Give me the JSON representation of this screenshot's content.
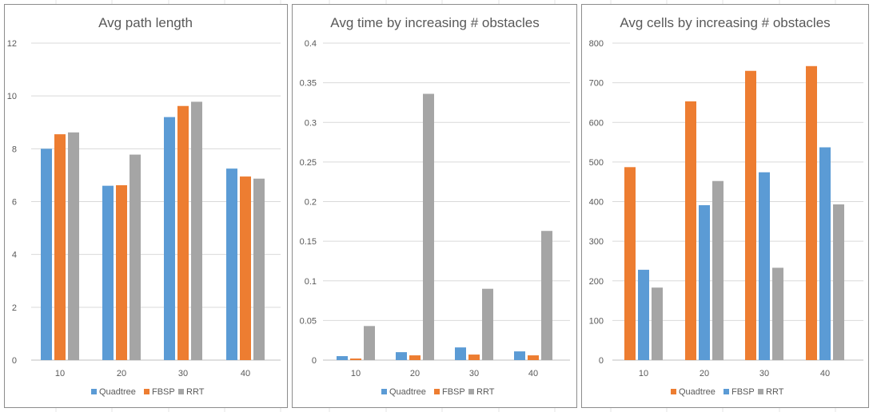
{
  "colors": {
    "Quadtree": "#5b9bd5",
    "FBSP": "#ed7d31",
    "RRT": "#a5a5a5"
  },
  "chart_data": [
    {
      "type": "bar",
      "title": "Avg path length",
      "categories": [
        "10",
        "20",
        "30",
        "40"
      ],
      "series": [
        {
          "name": "Quadtree",
          "values": [
            8.0,
            6.6,
            9.2,
            7.25
          ]
        },
        {
          "name": "FBSP",
          "values": [
            8.55,
            6.62,
            9.62,
            6.95
          ]
        },
        {
          "name": "RRT",
          "values": [
            8.62,
            7.78,
            9.78,
            6.87
          ]
        }
      ],
      "ylim": [
        0,
        12
      ],
      "yticks": [
        "0",
        "2",
        "4",
        "6",
        "8",
        "10",
        "12"
      ],
      "ytick_values": [
        0,
        2,
        4,
        6,
        8,
        10,
        12
      ],
      "xlabel": "",
      "ylabel": "",
      "grid": true,
      "legend": "bottom",
      "legend_order": [
        "Quadtree",
        "FBSP",
        "RRT"
      ]
    },
    {
      "type": "bar",
      "title": "Avg time by increasing # obstacles",
      "categories": [
        "10",
        "20",
        "30",
        "40"
      ],
      "series": [
        {
          "name": "Quadtree",
          "values": [
            0.005,
            0.01,
            0.016,
            0.011
          ]
        },
        {
          "name": "FBSP",
          "values": [
            0.002,
            0.006,
            0.007,
            0.006
          ]
        },
        {
          "name": "RRT",
          "values": [
            0.043,
            0.336,
            0.09,
            0.163
          ]
        }
      ],
      "ylim": [
        0,
        0.4
      ],
      "yticks": [
        "0",
        "0.05",
        "0.1",
        "0.15",
        "0.2",
        "0.25",
        "0.3",
        "0.35",
        "0.4"
      ],
      "ytick_values": [
        0,
        0.05,
        0.1,
        0.15,
        0.2,
        0.25,
        0.3,
        0.35,
        0.4
      ],
      "xlabel": "",
      "ylabel": "",
      "grid": true,
      "legend": "bottom",
      "legend_order": [
        "Quadtree",
        "FBSP",
        "RRT"
      ]
    },
    {
      "type": "bar",
      "title": "Avg cells by increasing # obstacles",
      "categories": [
        "10",
        "20",
        "30",
        "40"
      ],
      "series": [
        {
          "name": "Quadtree",
          "values": [
            487,
            653,
            730,
            742
          ]
        },
        {
          "name": "FBSP",
          "values": [
            228,
            391,
            474,
            537
          ]
        },
        {
          "name": "RRT",
          "values": [
            183,
            452,
            233,
            393
          ]
        }
      ],
      "ylim": [
        0,
        800
      ],
      "yticks": [
        "0",
        "100",
        "200",
        "300",
        "400",
        "500",
        "600",
        "700",
        "800"
      ],
      "ytick_values": [
        0,
        100,
        200,
        300,
        400,
        500,
        600,
        700,
        800
      ],
      "xlabel": "",
      "ylabel": "",
      "grid": true,
      "legend": "bottom",
      "legend_order": [
        "Quadtree",
        "FBSP",
        "RRT"
      ],
      "series_colors": [
        "#ed7d31",
        "#5b9bd5",
        "#a5a5a5"
      ]
    }
  ]
}
